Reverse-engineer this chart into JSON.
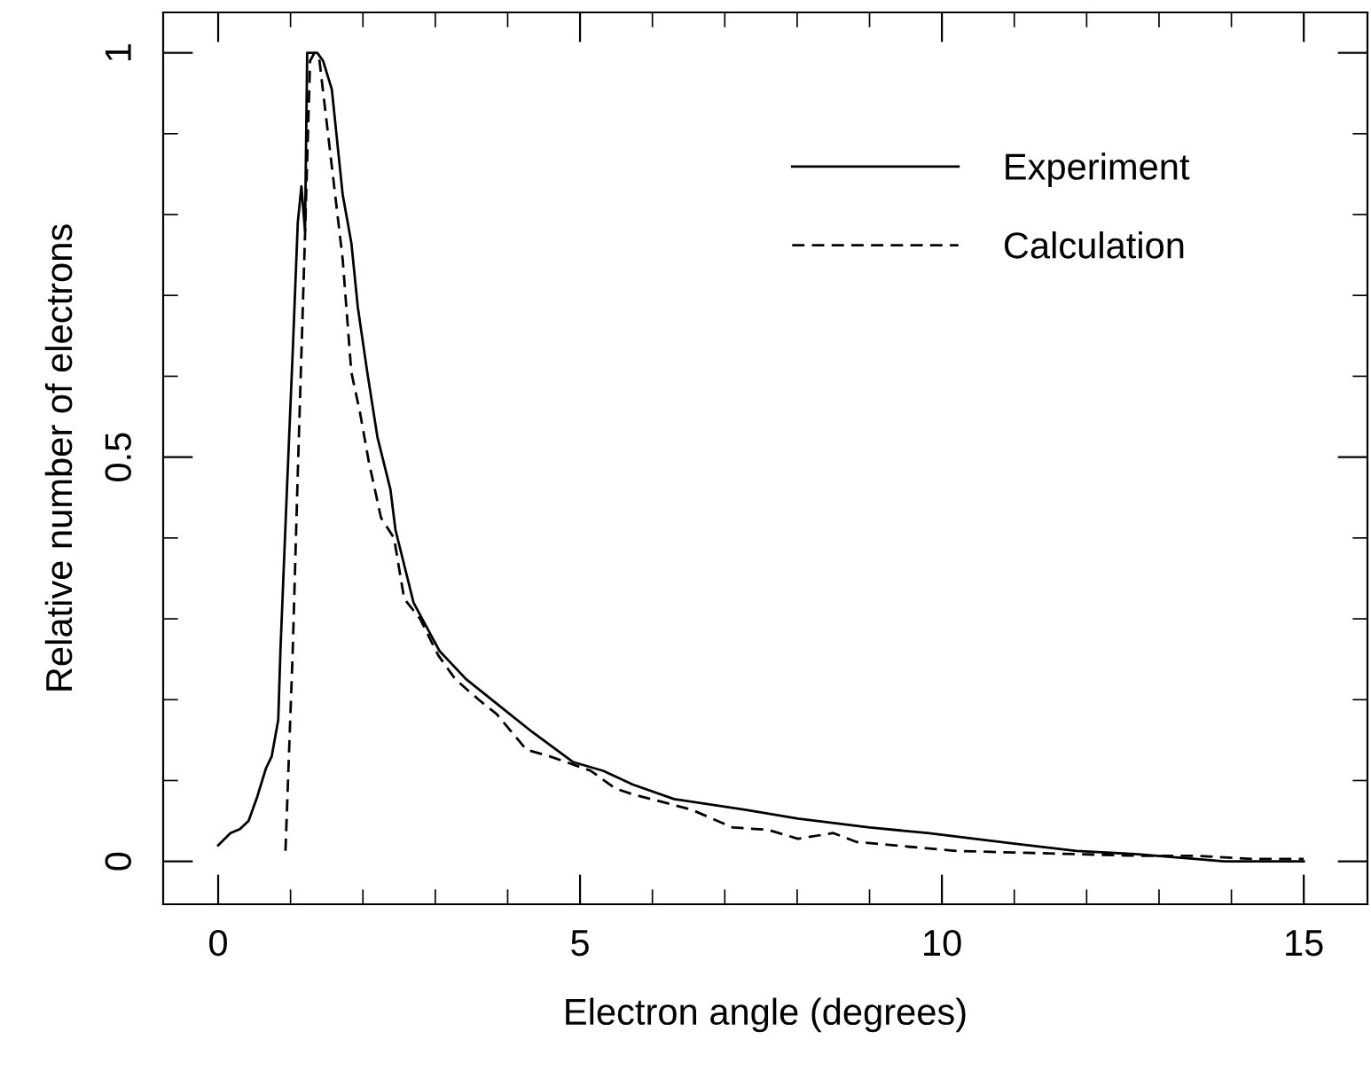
{
  "chart_data": {
    "type": "line",
    "xlabel": "Electron angle (degrees)",
    "ylabel": "Relative number of electrons",
    "xlim": [
      -0.76,
      15.88
    ],
    "ylim": [
      -0.053,
      1.05
    ],
    "xticks": [
      0,
      5,
      10,
      15
    ],
    "yticks": [
      0,
      0.5,
      1
    ],
    "grid": false,
    "legend": "top right",
    "marker": "none",
    "series": [
      {
        "name": "Experiment",
        "color": "#000000",
        "line_style": "solid",
        "x": [
          0,
          0.17,
          0.3,
          0.42,
          0.54,
          0.66,
          0.74,
          0.83,
          0.86,
          0.95,
          1.03,
          1.1,
          1.15,
          1.2,
          1.23,
          1.37,
          1.45,
          1.57,
          1.72,
          1.84,
          1.93,
          2.06,
          2.2,
          2.38,
          2.45,
          2.7,
          2.94,
          3.06,
          3.43,
          3.92,
          4.34,
          4.9,
          5.32,
          5.73,
          6.3,
          7.28,
          8.01,
          9.0,
          9.8,
          11.0,
          11.86,
          12.67,
          13.5,
          13.9,
          15.0
        ],
        "values": [
          0.02,
          0.035,
          0.04,
          0.05,
          0.08,
          0.115,
          0.13,
          0.175,
          0.26,
          0.46,
          0.63,
          0.79,
          0.835,
          0.78,
          1.0,
          1.0,
          0.99,
          0.955,
          0.825,
          0.765,
          0.685,
          0.605,
          0.525,
          0.46,
          0.41,
          0.32,
          0.28,
          0.26,
          0.225,
          0.19,
          0.16,
          0.123,
          0.112,
          0.095,
          0.077,
          0.064,
          0.053,
          0.042,
          0.035,
          0.022,
          0.013,
          0.009,
          0.003,
          0,
          0
        ]
      },
      {
        "name": "Calculation",
        "color": "#000000",
        "line_style": "dashed",
        "x": [
          0.93,
          1.03,
          1.1,
          1.2,
          1.27,
          1.33,
          1.4,
          1.57,
          1.72,
          1.84,
          1.96,
          2.08,
          2.25,
          2.43,
          2.57,
          2.79,
          3.04,
          3.28,
          3.6,
          3.85,
          4.26,
          4.58,
          5.15,
          5.49,
          5.73,
          6.54,
          7.11,
          7.6,
          8.01,
          8.5,
          8.82,
          9.56,
          10.2,
          11.0,
          11.86,
          12.67,
          13.5,
          14.3,
          15.0
        ],
        "values": [
          0.013,
          0.26,
          0.48,
          0.775,
          0.99,
          1.0,
          0.99,
          0.86,
          0.745,
          0.605,
          0.555,
          0.495,
          0.425,
          0.4,
          0.325,
          0.3,
          0.255,
          0.225,
          0.2,
          0.182,
          0.138,
          0.13,
          0.112,
          0.09,
          0.083,
          0.064,
          0.042,
          0.039,
          0.028,
          0.035,
          0.024,
          0.018,
          0.013,
          0.011,
          0.009,
          0.007,
          0.007,
          0.003,
          0.003
        ]
      }
    ]
  }
}
